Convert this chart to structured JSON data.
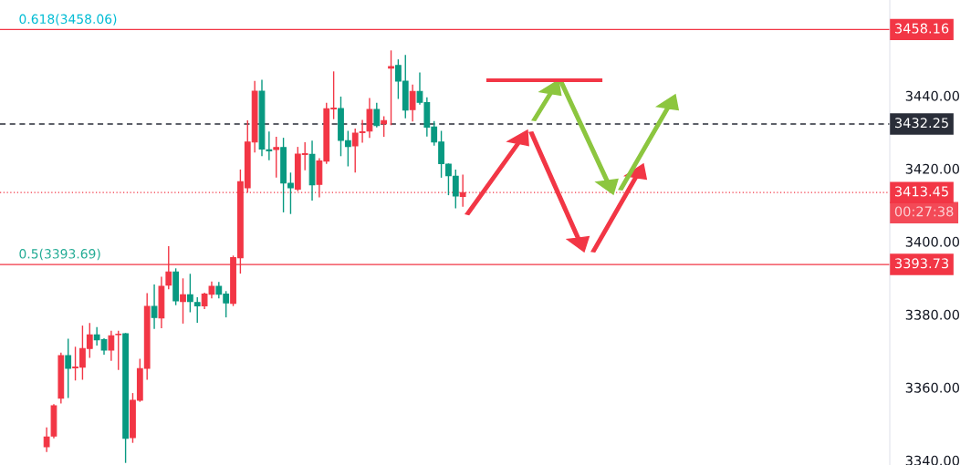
{
  "chart_data": {
    "type": "candlestick",
    "categories": [
      null,
      null,
      null,
      null,
      null,
      null,
      null,
      null,
      null,
      null,
      null,
      null,
      null,
      null,
      null,
      null,
      null,
      null,
      null,
      null,
      null,
      null,
      null,
      null,
      null,
      null,
      null,
      null,
      null,
      null,
      null,
      null,
      null,
      null,
      null,
      null,
      null,
      null,
      null,
      null,
      null,
      null,
      null,
      null,
      null,
      null,
      null,
      null,
      null,
      null,
      null,
      null,
      null,
      null,
      null,
      null,
      null,
      null,
      null,
      null,
      null,
      null,
      null,
      null,
      null,
      null,
      null,
      null,
      null,
      null,
      null,
      null,
      null,
      null,
      null,
      null,
      null,
      null,
      null,
      null,
      null,
      null,
      null,
      null,
      null,
      null,
      null,
      null,
      null,
      null,
      null,
      null,
      null,
      null,
      null,
      null,
      null,
      null,
      null,
      null,
      null,
      null,
      null,
      null,
      null,
      null,
      null,
      null,
      null,
      null,
      null,
      null,
      null,
      null,
      null,
      null,
      null,
      null,
      null,
      null,
      null,
      null,
      null,
      null
    ],
    "ohlc": [
      null,
      null,
      null,
      null,
      null,
      null,
      [
        3343.75,
        3348.9,
        3342.5,
        3346.4
      ],
      [
        3346.7,
        3355.25,
        3346.25,
        3355.0
      ],
      [
        3357.1,
        3369.4,
        3355.8,
        3368.75
      ],
      [
        3368.75,
        3373.2,
        3357.3,
        3365.25
      ],
      [
        3365.4,
        3371.0,
        3362.1,
        3365.6
      ],
      [
        3365.6,
        3376.8,
        3362.3,
        3370.7
      ],
      [
        3370.7,
        3377.5,
        3368.3,
        3374.4
      ],
      [
        3374.4,
        3376.4,
        3371.7,
        3373.1
      ],
      [
        3373.1,
        3373.3,
        3369.2,
        3370.25
      ],
      [
        3370.25,
        3375.4,
        3367.5,
        3374.2
      ],
      [
        3374.5,
        3375.4,
        3365.0,
        3374.6
      ],
      [
        3374.75,
        3374.75,
        3339.5,
        3346.1
      ],
      [
        3346.25,
        3358.3,
        3345.0,
        3356.5
      ],
      [
        3356.5,
        3367.7,
        3356.25,
        3365.2
      ],
      [
        3365.25,
        3385.7,
        3362.3,
        3382.25
      ],
      [
        3382.25,
        3388.1,
        3376.25,
        3379.2
      ],
      [
        3379.1,
        3390.2,
        3376.4,
        3387.75
      ],
      [
        3388.1,
        3398.6,
        3387.1,
        3391.7
      ],
      [
        3391.7,
        3392.5,
        3382.75,
        3383.75
      ],
      [
        3383.6,
        3389.75,
        3377.7,
        3385.4
      ],
      [
        3385.4,
        3391.0,
        3380.8,
        3383.6
      ],
      [
        3383.3,
        3384.6,
        3377.9,
        3382.4
      ],
      [
        3382.4,
        3385.8,
        3381.7,
        3385.6
      ],
      [
        3385.6,
        3388.9,
        3384.6,
        3387.75
      ],
      [
        3387.75,
        3388.75,
        3384.6,
        3385.6
      ],
      [
        3385.6,
        3386.25,
        3379.4,
        3383.2
      ],
      [
        3383.1,
        3396.0,
        3382.5,
        3395.6
      ],
      [
        3395.6,
        3419.6,
        3391.4,
        3416.4
      ],
      [
        3414.75,
        3433.1,
        3413.6,
        3427.3
      ],
      [
        3427.3,
        3443.9,
        3424.6,
        3441.25
      ],
      [
        3441.25,
        3444.2,
        3423.6,
        3425.4
      ],
      [
        3425.2,
        3430.0,
        3422.5,
        3424.9
      ],
      [
        3425.25,
        3428.6,
        3417.75,
        3425.8
      ],
      [
        3425.8,
        3428.3,
        3408.2,
        3416.1
      ],
      [
        3416.0,
        3418.75,
        3407.75,
        3414.75
      ],
      [
        3414.4,
        3425.8,
        3414.0,
        3424.0
      ],
      [
        3423.9,
        3427.1,
        3419.75,
        3424.1
      ],
      [
        3423.9,
        3427.5,
        3411.4,
        3415.6
      ],
      [
        3415.7,
        3422.7,
        3412.3,
        3422.1
      ],
      [
        3422.1,
        3437.9,
        3421.5,
        3436.4
      ],
      [
        3436.4,
        3446.5,
        3433.75,
        3436.6
      ],
      [
        3436.5,
        3439.6,
        3423.6,
        3427.75
      ],
      [
        3427.7,
        3430.2,
        3420.8,
        3426.1
      ],
      [
        3426.25,
        3430.8,
        3419.1,
        3429.75
      ],
      [
        3429.9,
        3433.2,
        3427.3,
        3430.1
      ],
      [
        3430.3,
        3439.2,
        3428.6,
        3436.25
      ],
      [
        3436.25,
        3437.9,
        3431.5,
        3431.8
      ],
      [
        3432.3,
        3434.2,
        3428.9,
        3433.2
      ],
      [
        3447.6,
        3452.25,
        3432.1,
        3448.0
      ],
      [
        3448.3,
        3449.8,
        3439.3,
        3444.0
      ],
      [
        3444.0,
        3451.0,
        3434.0,
        3436.1
      ],
      [
        3436.2,
        3442.9,
        3433.1,
        3441.2
      ],
      [
        3441.2,
        3446.2,
        3437.75,
        3438.2
      ],
      [
        3438.1,
        3439.4,
        3429.0,
        3431.4
      ],
      [
        3431.4,
        3432.9,
        3426.5,
        3427.3
      ],
      [
        3427.3,
        3430.2,
        3417.7,
        3421.4
      ],
      [
        3421.25,
        3421.25,
        3412.9,
        3418.1
      ],
      [
        3417.9,
        3419.6,
        3409.3,
        3412.5
      ],
      [
        3412.4,
        3418.2,
        3409.75,
        3413.45
      ],
      null,
      null,
      null,
      null,
      null,
      null,
      null,
      null,
      null,
      null,
      null,
      null,
      null,
      null,
      null,
      null,
      null,
      null,
      null,
      null,
      null,
      null,
      null,
      null,
      null,
      null,
      null,
      null,
      null,
      null,
      null,
      null,
      null,
      null,
      null,
      null,
      null,
      null,
      null,
      null,
      null,
      null,
      null,
      null,
      null,
      null,
      null,
      null,
      null,
      null,
      null,
      null,
      null,
      null,
      null,
      null,
      null,
      null,
      null
    ],
    "colors": [
      null,
      null,
      null,
      null,
      null,
      null,
      "#f23645",
      "#f23645",
      "#f23645",
      "#089981",
      "#f23645",
      "#f23645",
      "#f23645",
      "#089981",
      "#089981",
      "#f23645",
      "#f23645",
      "#089981",
      "#f23645",
      "#f23645",
      "#f23645",
      "#089981",
      "#f23645",
      "#f23645",
      "#089981",
      "#f23645",
      "#089981",
      "#089981",
      "#f23645",
      "#f23645",
      "#089981",
      "#089981",
      "#f23645",
      "#f23645",
      "#f23645",
      "#f23645",
      "#089981",
      "#089981",
      "#f23645",
      "#089981",
      "#089981",
      "#f23645",
      "#f23645",
      "#089981",
      "#f23645",
      "#f23645",
      "#f23645",
      "#089981",
      "#089981",
      "#f23645",
      "#f23645",
      "#f23645",
      "#089981",
      "#f23645",
      "#f23645",
      "#089981",
      "#089981",
      "#f23645",
      "#089981",
      "#089981",
      "#089981",
      "#089981",
      "#089981",
      "#089981",
      "#f23645",
      null,
      null,
      null,
      null,
      null,
      null,
      null,
      null,
      null,
      null,
      null,
      null,
      null,
      null,
      null,
      null,
      null,
      null,
      null,
      null,
      null,
      null,
      null,
      null,
      null,
      null,
      null,
      null,
      null,
      null,
      null,
      null,
      null,
      null,
      null,
      null,
      null,
      null,
      null,
      null,
      null,
      null,
      null,
      null,
      null,
      null,
      null,
      null,
      null,
      null,
      null,
      null,
      null,
      null,
      null,
      null,
      null,
      null,
      null
    ],
    "ylim": [
      3338.75,
      3466.25
    ],
    "yticks": [
      {
        "value": 3340,
        "label": "3340.00"
      },
      {
        "value": 3360,
        "label": "3360.00"
      },
      {
        "value": 3380,
        "label": "3380.00"
      },
      {
        "value": 3400,
        "label": "3400.00"
      },
      {
        "value": 3420,
        "label": "3420.00"
      },
      {
        "value": 3440,
        "label": "3440.00"
      }
    ],
    "ref_lines": [
      {
        "axis": "y",
        "value": 3458.16,
        "label": "3458.16",
        "color": "#f23645",
        "line_style": "solid"
      },
      {
        "axis": "y",
        "value": 3432.25,
        "label": "3432.25",
        "color": "#2a2e39",
        "line_style": "dashed"
      },
      {
        "axis": "y",
        "value": 3413.45,
        "label": "3413.45",
        "color": "#f23645",
        "line_style": "dotted"
      },
      {
        "axis": "y",
        "value": 3393.73,
        "label": "3393.73",
        "color": "#f23645",
        "line_style": "solid"
      }
    ],
    "annotations": [
      {
        "text": "0.618(3458.06)",
        "y": 3458.06
      },
      {
        "text": "0.5(3393.69)",
        "y": 3393.69
      },
      "00:27:38"
    ],
    "grid": false
  }
}
